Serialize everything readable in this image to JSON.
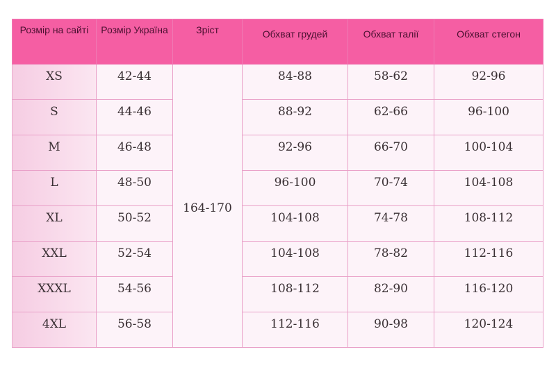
{
  "headers": [
    "Розмір на сайті",
    "Розмір Україна",
    "Зріст",
    "Обхват грудей",
    "Обхват талії",
    "Обхват стегон"
  ],
  "height_value": "164-170",
  "rows": [
    [
      "XS",
      "42-44",
      "84-88",
      "58-62",
      "92-96"
    ],
    [
      "S",
      "44-46",
      "88-92",
      "62-66",
      "96-100"
    ],
    [
      "M",
      "46-48",
      "92-96",
      "66-70",
      "100-104"
    ],
    [
      "L",
      "48-50",
      "96-100",
      "70-74",
      "104-108"
    ],
    [
      "XL",
      "50-52",
      "104-108",
      "74-78",
      "108-112"
    ],
    [
      "XXL",
      "52-54",
      "104-108",
      "78-82",
      "112-116"
    ],
    [
      "XXXL",
      "54-56",
      "108-112",
      "82-90",
      "116-120"
    ],
    [
      "4XL",
      "56-58",
      "112-116",
      "90-98",
      "120-124"
    ]
  ],
  "colors": {
    "header": "#f55ea3",
    "border": "#e9a0c8",
    "first_column": "#f6cde3"
  }
}
